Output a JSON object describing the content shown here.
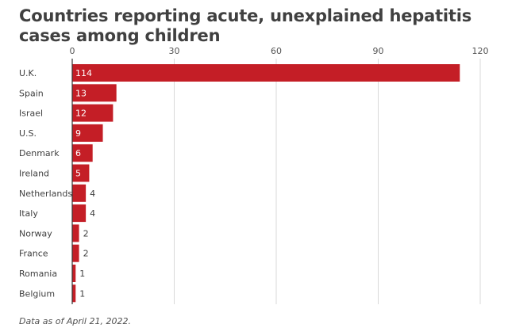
{
  "title": "Countries reporting acute, unexplained hepatitis cases among children",
  "footnote": "Data as of April 21, 2022.",
  "colors": {
    "bar": "#c41e26",
    "grid": "#d9d9d9",
    "axis": "#333333",
    "text": "#404040"
  },
  "chart_data": {
    "type": "bar",
    "orientation": "horizontal",
    "title": "Countries reporting acute, unexplained hepatitis cases among children",
    "categories": [
      "U.K.",
      "Spain",
      "Israel",
      "U.S.",
      "Denmark",
      "Ireland",
      "Netherlands",
      "Italy",
      "Norway",
      "France",
      "Romania",
      "Belgium"
    ],
    "values": [
      114,
      13,
      12,
      9,
      6,
      5,
      4,
      4,
      2,
      2,
      1,
      1
    ],
    "xlim": [
      0,
      120
    ],
    "xticks": [
      0,
      30,
      60,
      90,
      120
    ],
    "grid": true,
    "xaxis_position": "top",
    "xlabel": "",
    "ylabel": ""
  }
}
